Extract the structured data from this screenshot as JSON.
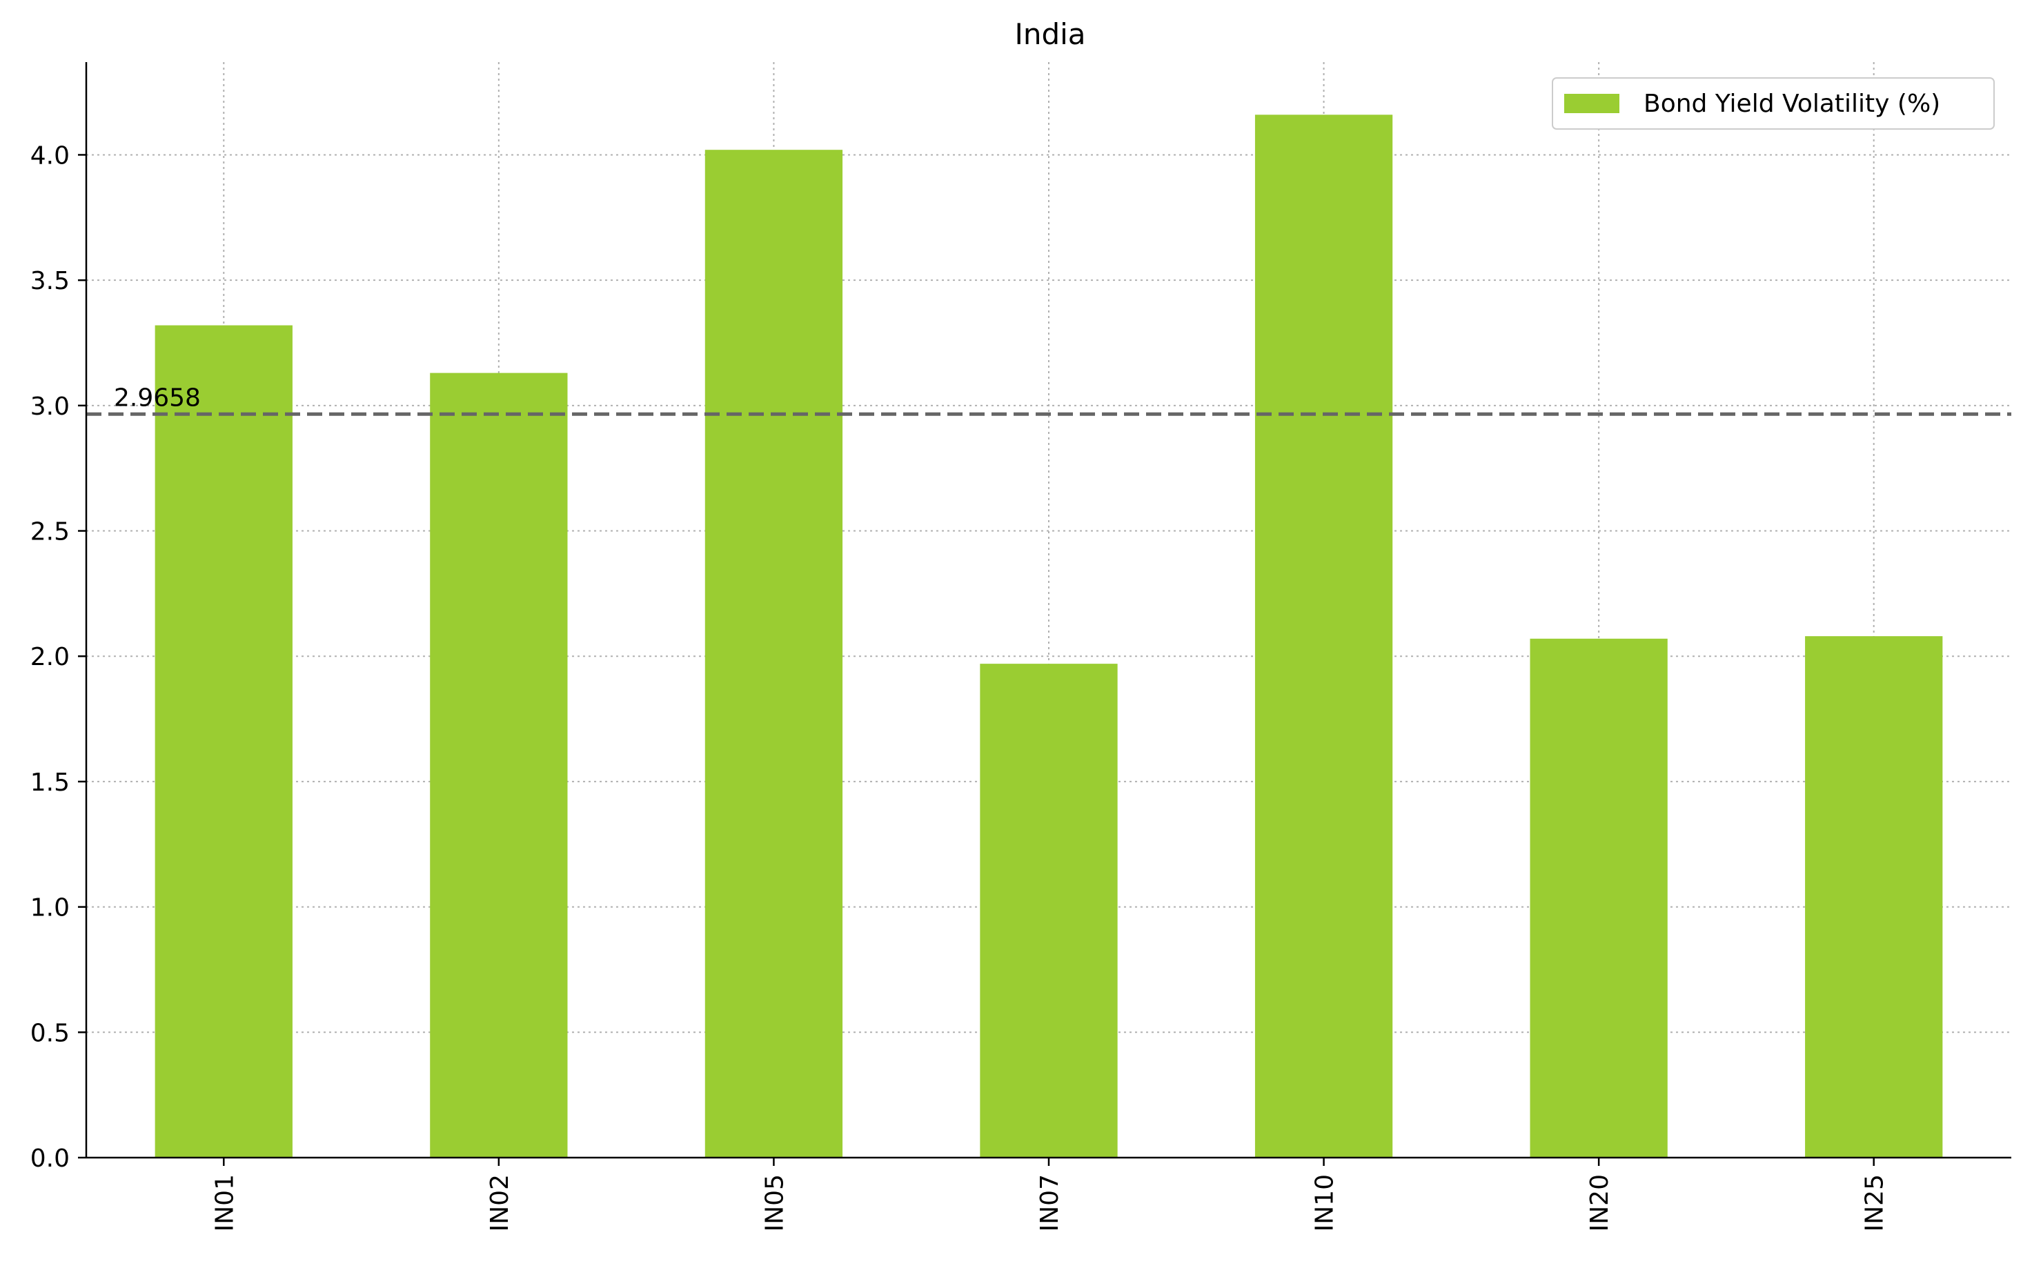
{
  "chart_data": {
    "type": "bar",
    "title": "India",
    "xlabel": "",
    "ylabel": "",
    "categories": [
      "IN01",
      "IN02",
      "IN05",
      "IN07",
      "IN10",
      "IN20",
      "IN25"
    ],
    "series": [
      {
        "name": "Bond Yield Volatility (%)",
        "values": [
          3.32,
          3.13,
          4.02,
          1.97,
          4.16,
          2.07,
          2.08
        ],
        "color": "#9ACD32"
      }
    ],
    "ylim": [
      0,
      4.37
    ],
    "yticks": [
      0.0,
      0.5,
      1.0,
      1.5,
      2.0,
      2.5,
      3.0,
      3.5,
      4.0
    ],
    "ytick_labels": [
      "0.0",
      "0.5",
      "1.0",
      "1.5",
      "2.0",
      "2.5",
      "3.0",
      "3.5",
      "4.0"
    ],
    "grid": true,
    "legend_position": "top-right",
    "reference_line": {
      "value": 2.9658,
      "label": "2.9658",
      "color": "#666666",
      "style": "dashed"
    },
    "x_tick_rotation": "vertical"
  }
}
